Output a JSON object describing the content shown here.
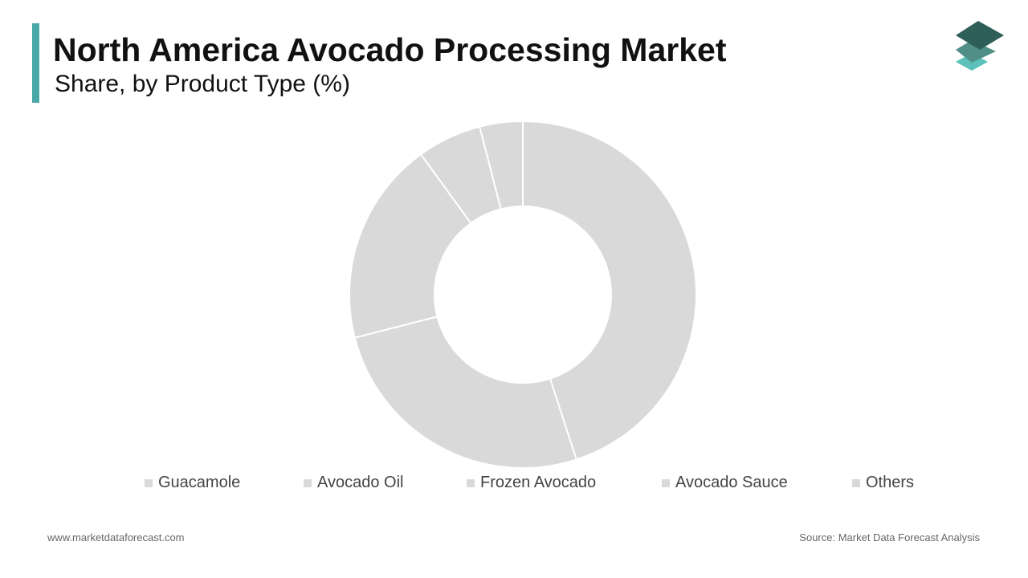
{
  "header": {
    "title": "North America Avocado Processing Market",
    "subtitle": "Share, by Product Type (%)"
  },
  "logo": {
    "icon": "stacked-layers-icon",
    "colors": [
      "#2e5e58",
      "#4f8f87",
      "#5cc1bb"
    ]
  },
  "chart_data": {
    "type": "pie",
    "donut": true,
    "categories": [
      "Guacamole",
      "Avocado Oil",
      "Frozen Avocado",
      "Avocado Sauce",
      "Others"
    ],
    "values": [
      45,
      26,
      19,
      6,
      4
    ],
    "colors": [
      "#d9d9d9",
      "#d9d9d9",
      "#d9d9d9",
      "#d9d9d9",
      "#d9d9d9"
    ],
    "legend_position": "bottom"
  },
  "footer": {
    "website": "www.marketdataforecast.com",
    "source": "Source: Market Data Forecast Analysis"
  }
}
